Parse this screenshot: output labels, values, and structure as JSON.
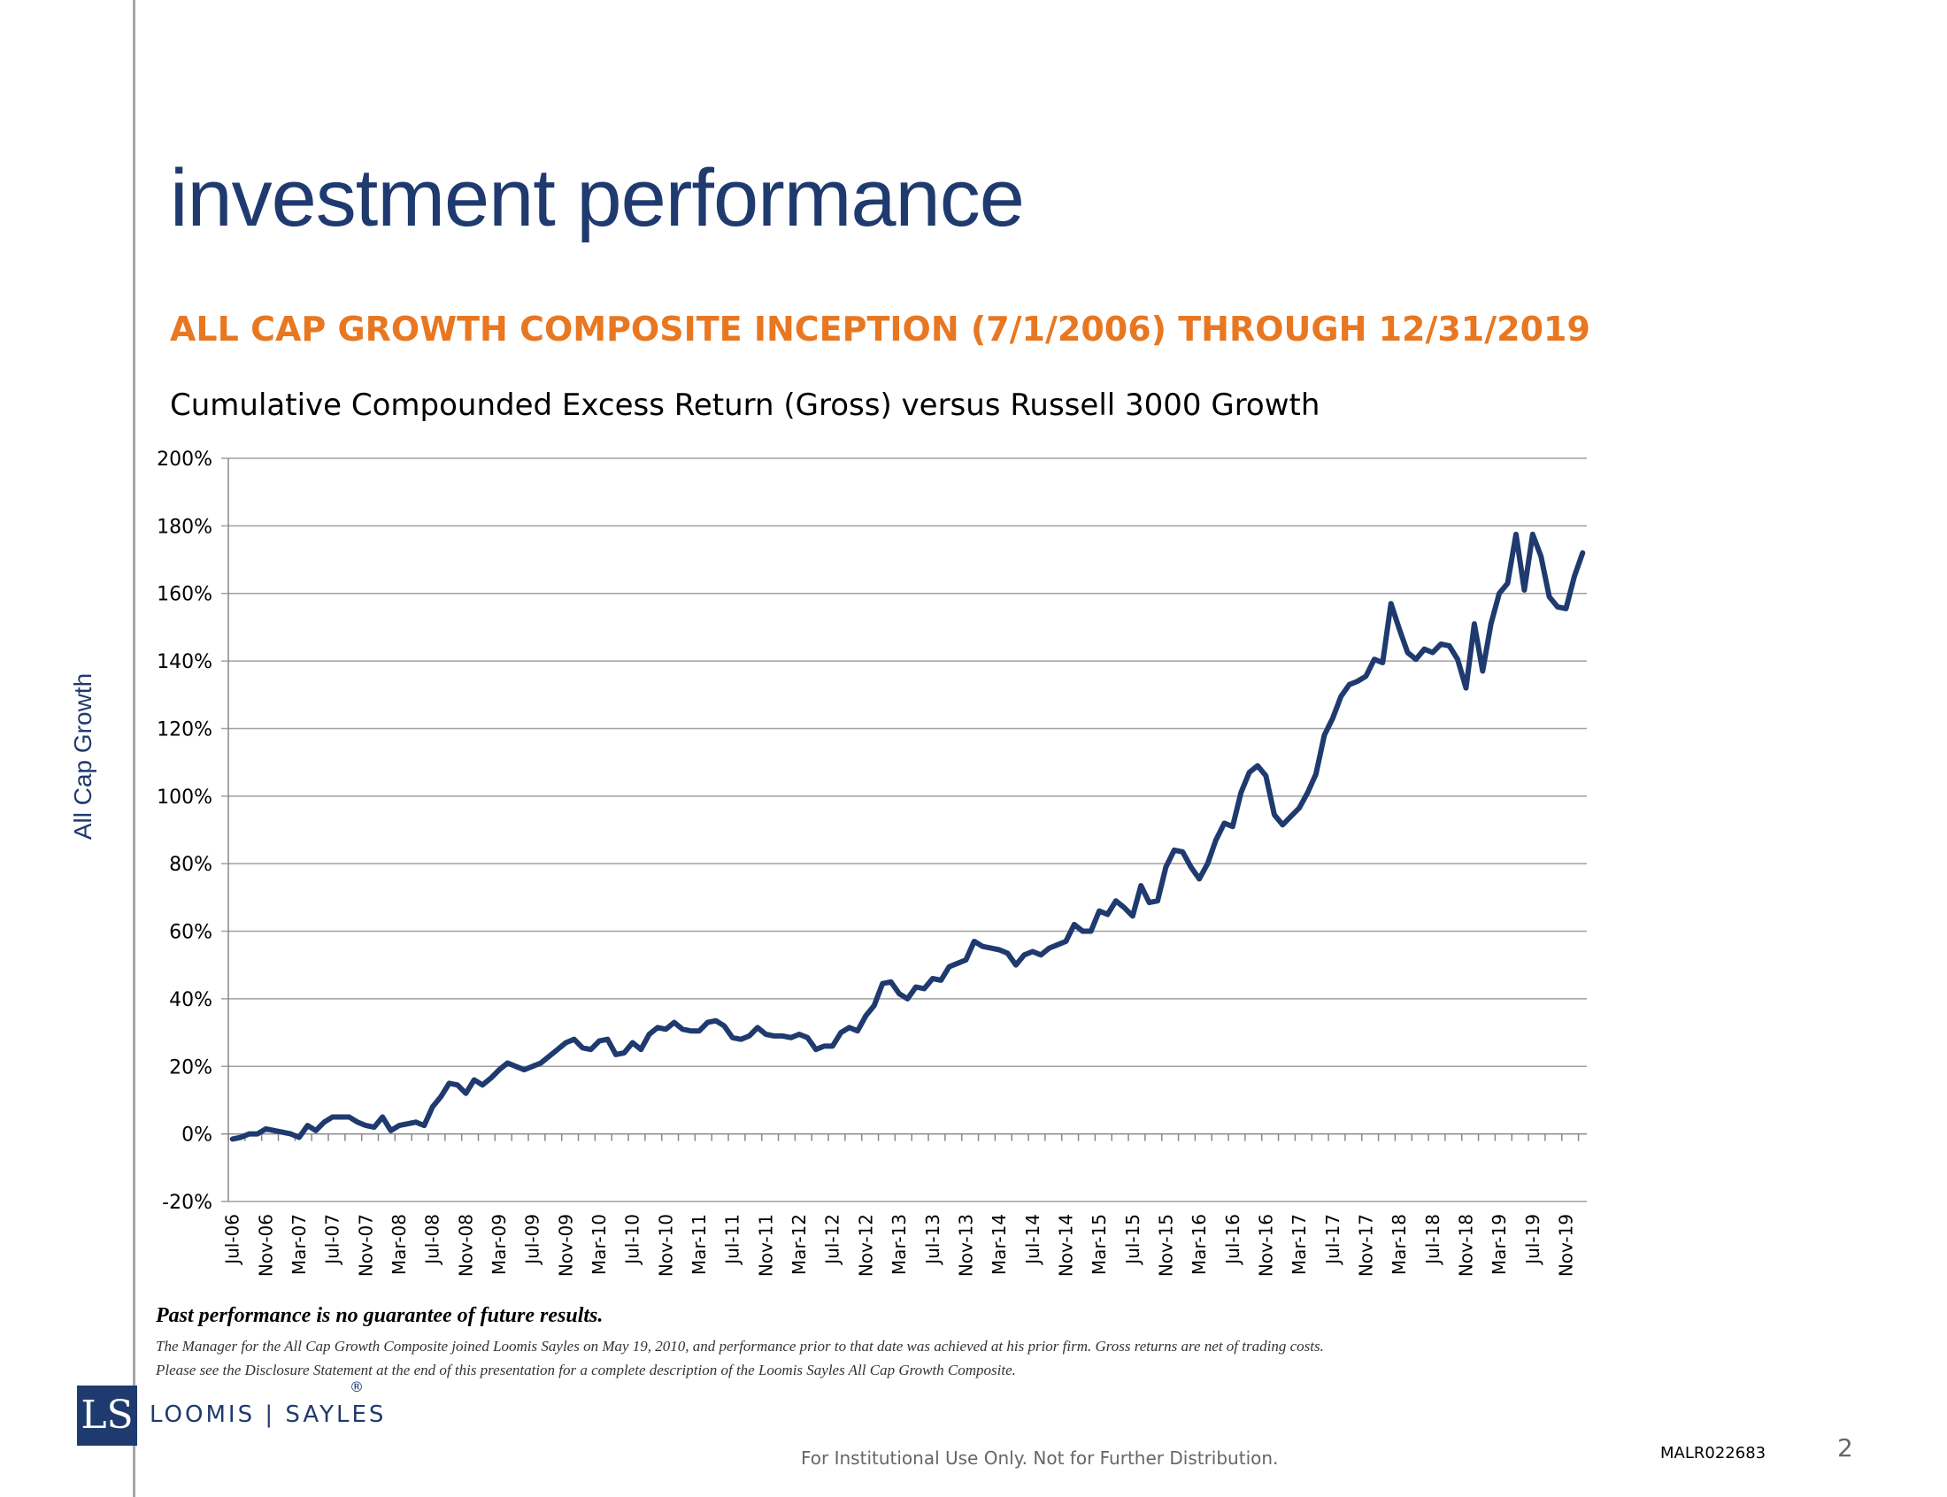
{
  "header": {
    "title": "investment performance",
    "subtitle": "ALL CAP GROWTH COMPOSITE INCEPTION (7/1/2006) THROUGH 12/31/2019"
  },
  "side_label": "All Cap Growth",
  "chart_data": {
    "type": "line",
    "title": "Cumulative Compounded Excess Return (Gross) versus Russell 3000 Growth",
    "xlabel": "",
    "ylabel": "",
    "ylim": [
      -20,
      200
    ],
    "ytick_step": 20,
    "ytick_labels": [
      "-20%",
      "0%",
      "20%",
      "40%",
      "60%",
      "80%",
      "100%",
      "120%",
      "140%",
      "160%",
      "180%",
      "200%"
    ],
    "grid": true,
    "line_color": "#1f3a6e",
    "x_tick_labels": [
      "Jul-06",
      "Nov-06",
      "Mar-07",
      "Jul-07",
      "Nov-07",
      "Mar-08",
      "Jul-08",
      "Nov-08",
      "Mar-09",
      "Jul-09",
      "Nov-09",
      "Mar-10",
      "Jul-10",
      "Nov-10",
      "Mar-11",
      "Jul-11",
      "Nov-11",
      "Mar-12",
      "Jul-12",
      "Nov-12",
      "Mar-13",
      "Jul-13",
      "Nov-13",
      "Mar-14",
      "Jul-14",
      "Nov-14",
      "Mar-15",
      "Jul-15",
      "Nov-15",
      "Mar-16",
      "Jul-16",
      "Nov-16",
      "Mar-17",
      "Jul-17",
      "Nov-17",
      "Mar-18",
      "Jul-18",
      "Nov-18",
      "Mar-19",
      "Jul-19",
      "Nov-19"
    ],
    "x_start": "Jul-06",
    "x_end": "Dec-19",
    "values": [
      -1.5,
      -1,
      0,
      0,
      1.5,
      1,
      0.5,
      0,
      -1,
      2.5,
      1,
      3.5,
      5,
      5,
      5,
      3.5,
      2.5,
      2,
      5,
      1,
      2.5,
      3,
      3.5,
      2.5,
      8,
      11,
      15,
      14.5,
      12,
      16,
      14.5,
      16.5,
      19,
      21,
      20,
      19,
      20,
      21,
      23,
      25,
      27,
      28,
      25.5,
      25,
      27.5,
      28,
      23.5,
      24,
      27,
      25,
      29.5,
      31.5,
      31,
      33,
      31,
      30.5,
      30.5,
      33,
      33.5,
      32,
      28.5,
      28,
      29,
      31.5,
      29.5,
      29,
      29,
      28.5,
      29.5,
      28.5,
      25,
      26,
      26,
      30,
      31.5,
      30.5,
      35,
      38,
      44.5,
      45,
      41.5,
      40,
      43.5,
      43,
      46,
      45.5,
      49.5,
      50.5,
      51.5,
      57,
      55.5,
      55,
      54.5,
      53.5,
      50,
      53,
      54,
      53,
      55,
      56,
      57,
      62,
      60,
      60,
      66,
      65,
      69,
      67,
      64.5,
      73.5,
      68.5,
      69,
      79,
      84,
      83.5,
      79,
      75.5,
      80,
      87,
      92,
      91,
      101,
      107,
      109,
      106,
      94.5,
      91.5,
      94,
      96.5,
      101,
      106.5,
      118,
      123,
      129.5,
      133,
      134,
      135.5,
      140.5,
      139.5,
      157,
      149.5,
      142.5,
      140.5,
      143.5,
      142.5,
      145,
      144.5,
      140.5,
      132,
      151,
      137,
      151,
      160,
      163,
      177.5,
      161,
      177.5,
      171,
      159,
      156,
      155.5,
      165,
      172
    ]
  },
  "footer": {
    "disclaimer_heading": "Past performance is no guarantee of future results.",
    "disclaimer_line1": "The Manager for the All Cap Growth Composite joined Loomis Sayles on May 19, 2010, and performance prior to that date was achieved at his prior firm. Gross returns are net of trading costs.",
    "disclaimer_line2": "Please see the Disclosure Statement at the end of this presentation for a complete description of the Loomis Sayles All Cap Growth Composite.",
    "logo_mark": "LS",
    "logo_text": "LOOMIS | SAYLES",
    "logo_reg": "®",
    "note": "For Institutional Use Only. Not for Further Distribution.",
    "doc_id": "MALR022683",
    "page_number": "2"
  }
}
